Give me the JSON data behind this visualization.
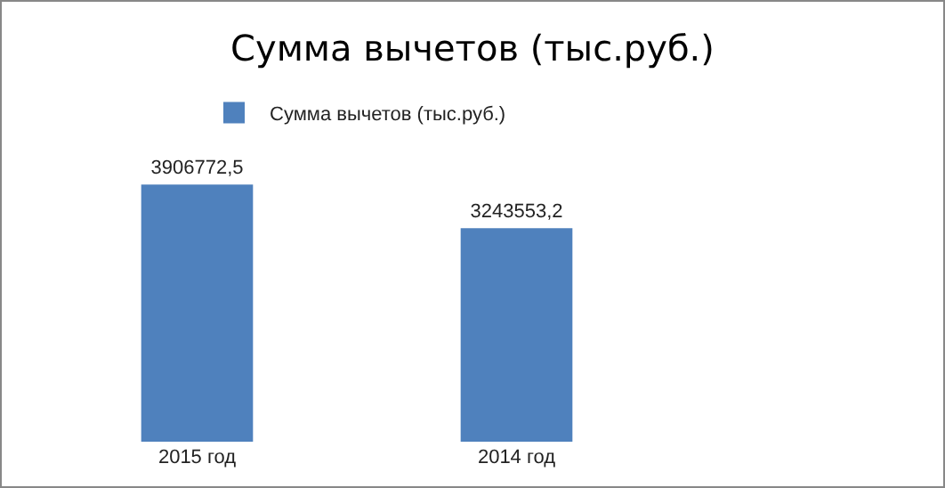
{
  "chart_data": {
    "type": "bar",
    "title": "Сумма вычетов (тыс.руб.)",
    "categories": [
      "2015 год",
      "2014 год"
    ],
    "series": [
      {
        "name": "Сумма вычетов (тыс.руб.)",
        "color": "#4f81bd",
        "values": [
          3906772.5,
          3243553.2
        ],
        "value_labels": [
          "3906772,5",
          "3243553,2"
        ]
      }
    ],
    "legend": "top",
    "grid": false
  }
}
